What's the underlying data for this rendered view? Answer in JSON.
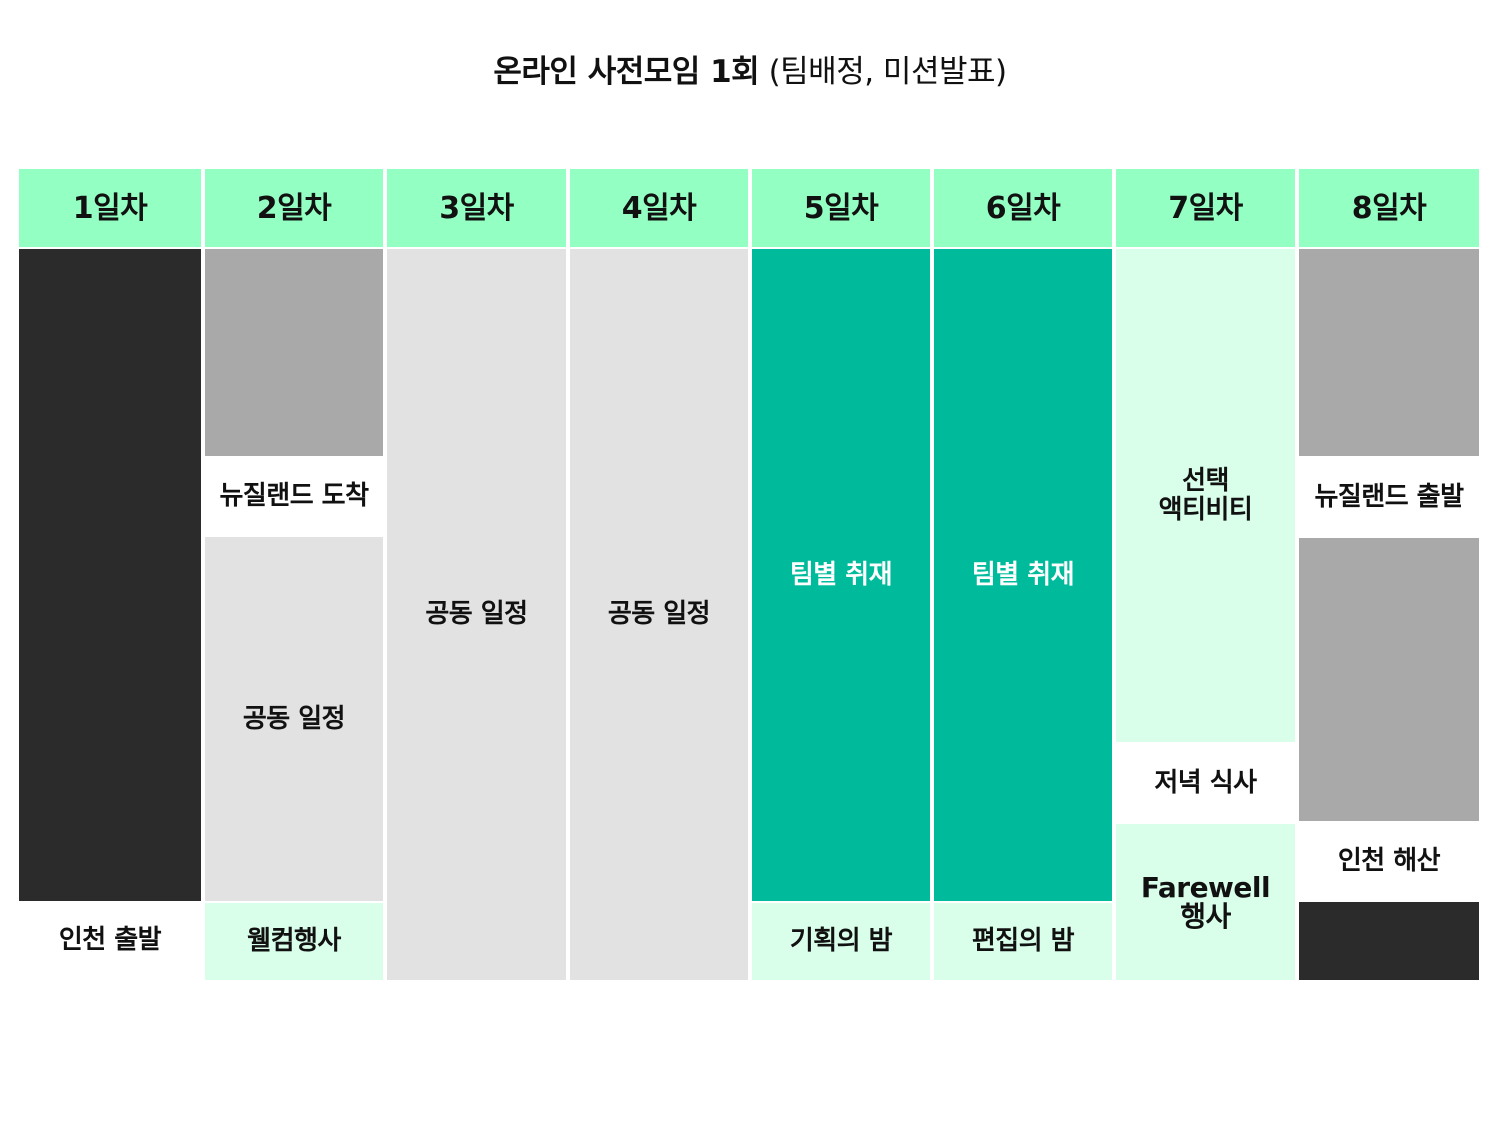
{
  "title": {
    "main": "온라인 사전모임 1회",
    "sub": "(팀배정, 미션발표)"
  },
  "days": [
    "1일차",
    "2일차",
    "3일차",
    "4일차",
    "5일차",
    "6일차",
    "7일차",
    "8일차"
  ],
  "schedule": {
    "day1": {
      "departure": "인천 출발"
    },
    "day2": {
      "arrival": "뉴질랜드 도착",
      "common": "공동 일정",
      "welcome": "웰컴행사"
    },
    "day3": {
      "common": "공동 일정"
    },
    "day4": {
      "common": "공동 일정"
    },
    "day5": {
      "team": "팀별 취재",
      "night": "기획의 밤"
    },
    "day6": {
      "team": "팀별 취재",
      "night": "편집의 밤"
    },
    "day7": {
      "activity": "선택\n액티비티",
      "dinner": "저녁 식사",
      "farewell": "Farewell\n행사"
    },
    "day8": {
      "departure": "뉴질랜드 출발",
      "dismiss": "인천 해산"
    }
  },
  "colors": {
    "header": "#93ffc3",
    "black": "#2b2b2b",
    "gray": "#a9a9a9",
    "light_gray": "#e2e2e2",
    "mint": "#d9feea",
    "teal": "#00bb9b"
  }
}
